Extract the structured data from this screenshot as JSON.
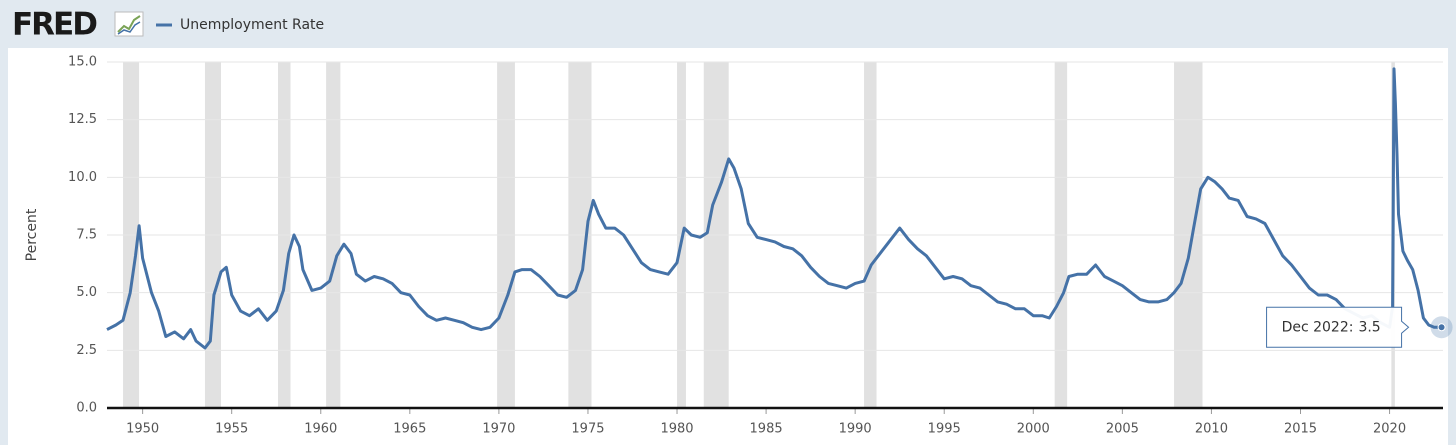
{
  "chart_data": {
    "type": "line",
    "logo": "FRED",
    "y_label": "Percent",
    "series": [
      {
        "name": "Unemployment Rate",
        "color": "#4572a7",
        "values": [
          3.4,
          3.6,
          3.8,
          5.0,
          6.6,
          7.9,
          6.5,
          5.0,
          4.2,
          3.1,
          3.3,
          3.0,
          3.4,
          2.9,
          2.6,
          2.9,
          4.9,
          5.9,
          6.1,
          4.9,
          4.2,
          4.0,
          4.3,
          3.8,
          4.2,
          5.1,
          6.7,
          7.5,
          7.0,
          6.0,
          5.1,
          5.2,
          5.5,
          6.6,
          7.1,
          6.7,
          5.8,
          5.5,
          5.7,
          5.6,
          5.4,
          5.0,
          4.9,
          4.4,
          4.0,
          3.8,
          3.9,
          3.8,
          3.7,
          3.5,
          3.4,
          3.5,
          3.9,
          4.9,
          5.9,
          6.0,
          6.0,
          5.7,
          5.3,
          4.9,
          4.8,
          5.1,
          6.0,
          8.1,
          9.0,
          8.4,
          7.8,
          7.8,
          7.5,
          6.9,
          6.3,
          6.0,
          5.9,
          5.8,
          6.3,
          7.8,
          7.5,
          7.4,
          7.6,
          8.8,
          9.8,
          10.8,
          10.4,
          9.5,
          8.0,
          7.4,
          7.3,
          7.2,
          7.0,
          6.9,
          6.6,
          6.1,
          5.7,
          5.4,
          5.3,
          5.2,
          5.4,
          5.5,
          6.2,
          6.8,
          7.3,
          7.8,
          7.3,
          6.9,
          6.6,
          6.1,
          5.6,
          5.7,
          5.6,
          5.3,
          5.2,
          4.9,
          4.6,
          4.5,
          4.3,
          4.3,
          4.0,
          4.0,
          3.9,
          4.4,
          5.0,
          5.7,
          5.8,
          5.8,
          6.2,
          5.7,
          5.5,
          5.3,
          5.0,
          4.7,
          4.6,
          4.6,
          4.7,
          5.0,
          5.4,
          6.5,
          7.8,
          9.5,
          10.0,
          9.8,
          9.5,
          9.1,
          9.0,
          8.3,
          8.2,
          8.0,
          7.3,
          6.6,
          6.2,
          5.7,
          5.2,
          4.9,
          4.9,
          4.7,
          4.3,
          4.1,
          3.9,
          4.0,
          3.7,
          3.5,
          4.4,
          14.7,
          13.2,
          11.0,
          8.4,
          6.8,
          6.4,
          6.0,
          5.1,
          3.9,
          3.6,
          3.5,
          3.5
        ]
      }
    ],
    "x": [
      1948.0,
      1948.5,
      1948.9,
      1949.3,
      1949.6,
      1949.8,
      1950.0,
      1950.5,
      1950.9,
      1951.3,
      1951.8,
      1952.3,
      1952.7,
      1953.0,
      1953.5,
      1953.8,
      1954.0,
      1954.4,
      1954.7,
      1955.0,
      1955.5,
      1956.0,
      1956.5,
      1957.0,
      1957.5,
      1957.9,
      1958.2,
      1958.5,
      1958.8,
      1959.0,
      1959.5,
      1960.0,
      1960.5,
      1960.9,
      1961.3,
      1961.7,
      1962.0,
      1962.5,
      1963.0,
      1963.5,
      1964.0,
      1964.5,
      1965.0,
      1965.5,
      1966.0,
      1966.5,
      1967.0,
      1967.5,
      1968.0,
      1968.5,
      1969.0,
      1969.5,
      1970.0,
      1970.5,
      1970.9,
      1971.3,
      1971.8,
      1972.3,
      1972.8,
      1973.3,
      1973.8,
      1974.3,
      1974.7,
      1975.0,
      1975.3,
      1975.6,
      1976.0,
      1976.5,
      1977.0,
      1977.5,
      1978.0,
      1978.5,
      1979.0,
      1979.5,
      1980.0,
      1980.4,
      1980.8,
      1981.3,
      1981.7,
      1982.0,
      1982.5,
      1982.9,
      1983.2,
      1983.6,
      1984.0,
      1984.5,
      1985.0,
      1985.5,
      1986.0,
      1986.5,
      1987.0,
      1987.5,
      1988.0,
      1988.5,
      1989.0,
      1989.5,
      1990.0,
      1990.5,
      1990.9,
      1991.5,
      1992.0,
      1992.5,
      1993.0,
      1993.5,
      1994.0,
      1994.5,
      1995.0,
      1995.5,
      1996.0,
      1996.5,
      1997.0,
      1997.5,
      1998.0,
      1998.5,
      1999.0,
      1999.5,
      2000.0,
      2000.5,
      2000.9,
      2001.3,
      2001.7,
      2002.0,
      2002.5,
      2003.0,
      2003.5,
      2004.0,
      2004.5,
      2005.0,
      2005.5,
      2006.0,
      2006.5,
      2007.0,
      2007.5,
      2007.9,
      2008.3,
      2008.7,
      2009.0,
      2009.4,
      2009.8,
      2010.2,
      2010.6,
      2011.0,
      2011.5,
      2012.0,
      2012.5,
      2013.0,
      2013.5,
      2014.0,
      2014.5,
      2015.0,
      2015.5,
      2016.0,
      2016.5,
      2017.0,
      2017.5,
      2018.0,
      2018.5,
      2019.0,
      2019.5,
      2020.0,
      2020.17,
      2020.25,
      2020.33,
      2020.42,
      2020.5,
      2020.75,
      2021.0,
      2021.3,
      2021.6,
      2021.9,
      2022.2,
      2022.5,
      2022.92
    ],
    "recessions": [
      [
        1948.9,
        1949.8
      ],
      [
        1953.5,
        1954.4
      ],
      [
        1957.6,
        1958.3
      ],
      [
        1960.3,
        1961.1
      ],
      [
        1969.9,
        1970.9
      ],
      [
        1973.9,
        1975.2
      ],
      [
        1980.0,
        1980.5
      ],
      [
        1981.5,
        1982.9
      ],
      [
        1990.5,
        1991.2
      ],
      [
        2001.2,
        2001.9
      ],
      [
        2007.9,
        2009.5
      ],
      [
        2020.1,
        2020.3
      ]
    ],
    "recession_color": "#e1e1e1",
    "xlim": [
      1948.0,
      2023.0
    ],
    "xticks": [
      1950,
      1955,
      1960,
      1965,
      1970,
      1975,
      1980,
      1985,
      1990,
      1995,
      2000,
      2005,
      2010,
      2015,
      2020
    ],
    "ylim": [
      0,
      15
    ],
    "yticks": [
      {
        "value": 0,
        "label": "0.0"
      },
      2.5,
      {
        "value": 5,
        "label": "5.0"
      },
      7.5,
      {
        "value": 10,
        "label": "10.0"
      },
      12.5,
      {
        "value": 15,
        "label": "15.0"
      }
    ],
    "grid": true,
    "tooltip": {
      "label": "Dec 2022:",
      "value": 3.5
    }
  }
}
